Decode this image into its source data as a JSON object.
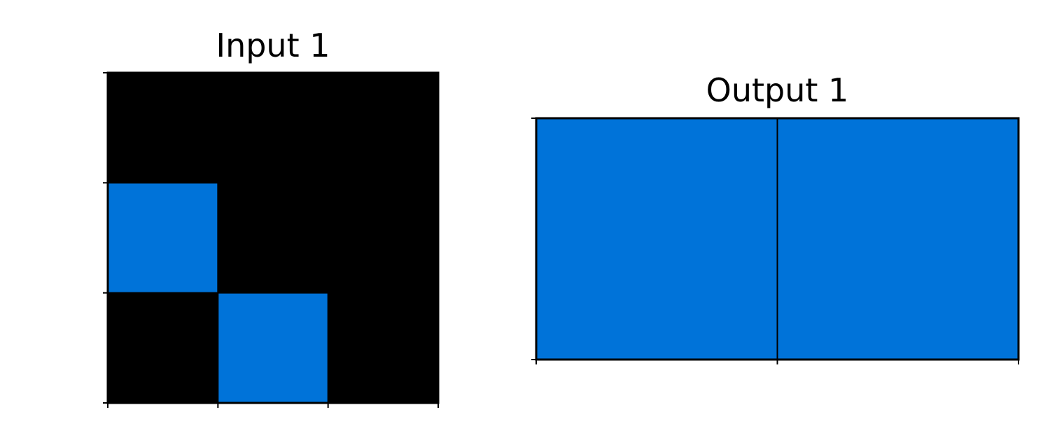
{
  "input_panel": {
    "title": "Input 1",
    "rows": 3,
    "cols": 3,
    "cells": [
      [
        0,
        0,
        0
      ],
      [
        1,
        0,
        0
      ],
      [
        0,
        1,
        0
      ]
    ]
  },
  "output_panel": {
    "title": "Output 1",
    "rows": 1,
    "cols": 2,
    "cells": [
      [
        1,
        1
      ]
    ]
  },
  "palette": {
    "0": "#000000",
    "1": "#0073D9"
  },
  "grid_line_color": "#000000"
}
